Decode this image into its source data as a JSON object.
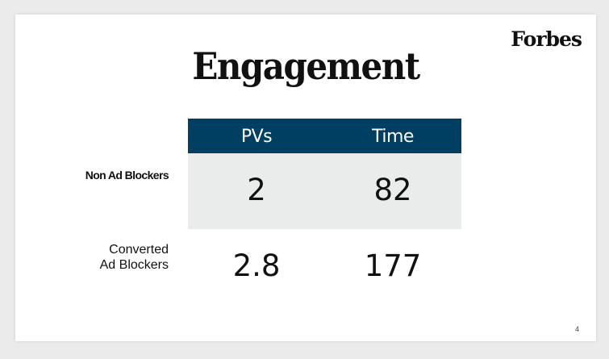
{
  "slide": {
    "logo": "Forbes",
    "title": "Engagement",
    "page_number": "4"
  },
  "table": {
    "columns": [
      "PVs",
      "Time"
    ],
    "rows": [
      {
        "label": "Non Ad Blockers",
        "values": [
          "2",
          "82"
        ]
      },
      {
        "label_line1": "Converted",
        "label_line2": "Ad Blockers",
        "values": [
          "2.8",
          "177"
        ]
      }
    ]
  },
  "colors": {
    "header_bg": "#003e62",
    "row_bg": "#eaecec"
  }
}
